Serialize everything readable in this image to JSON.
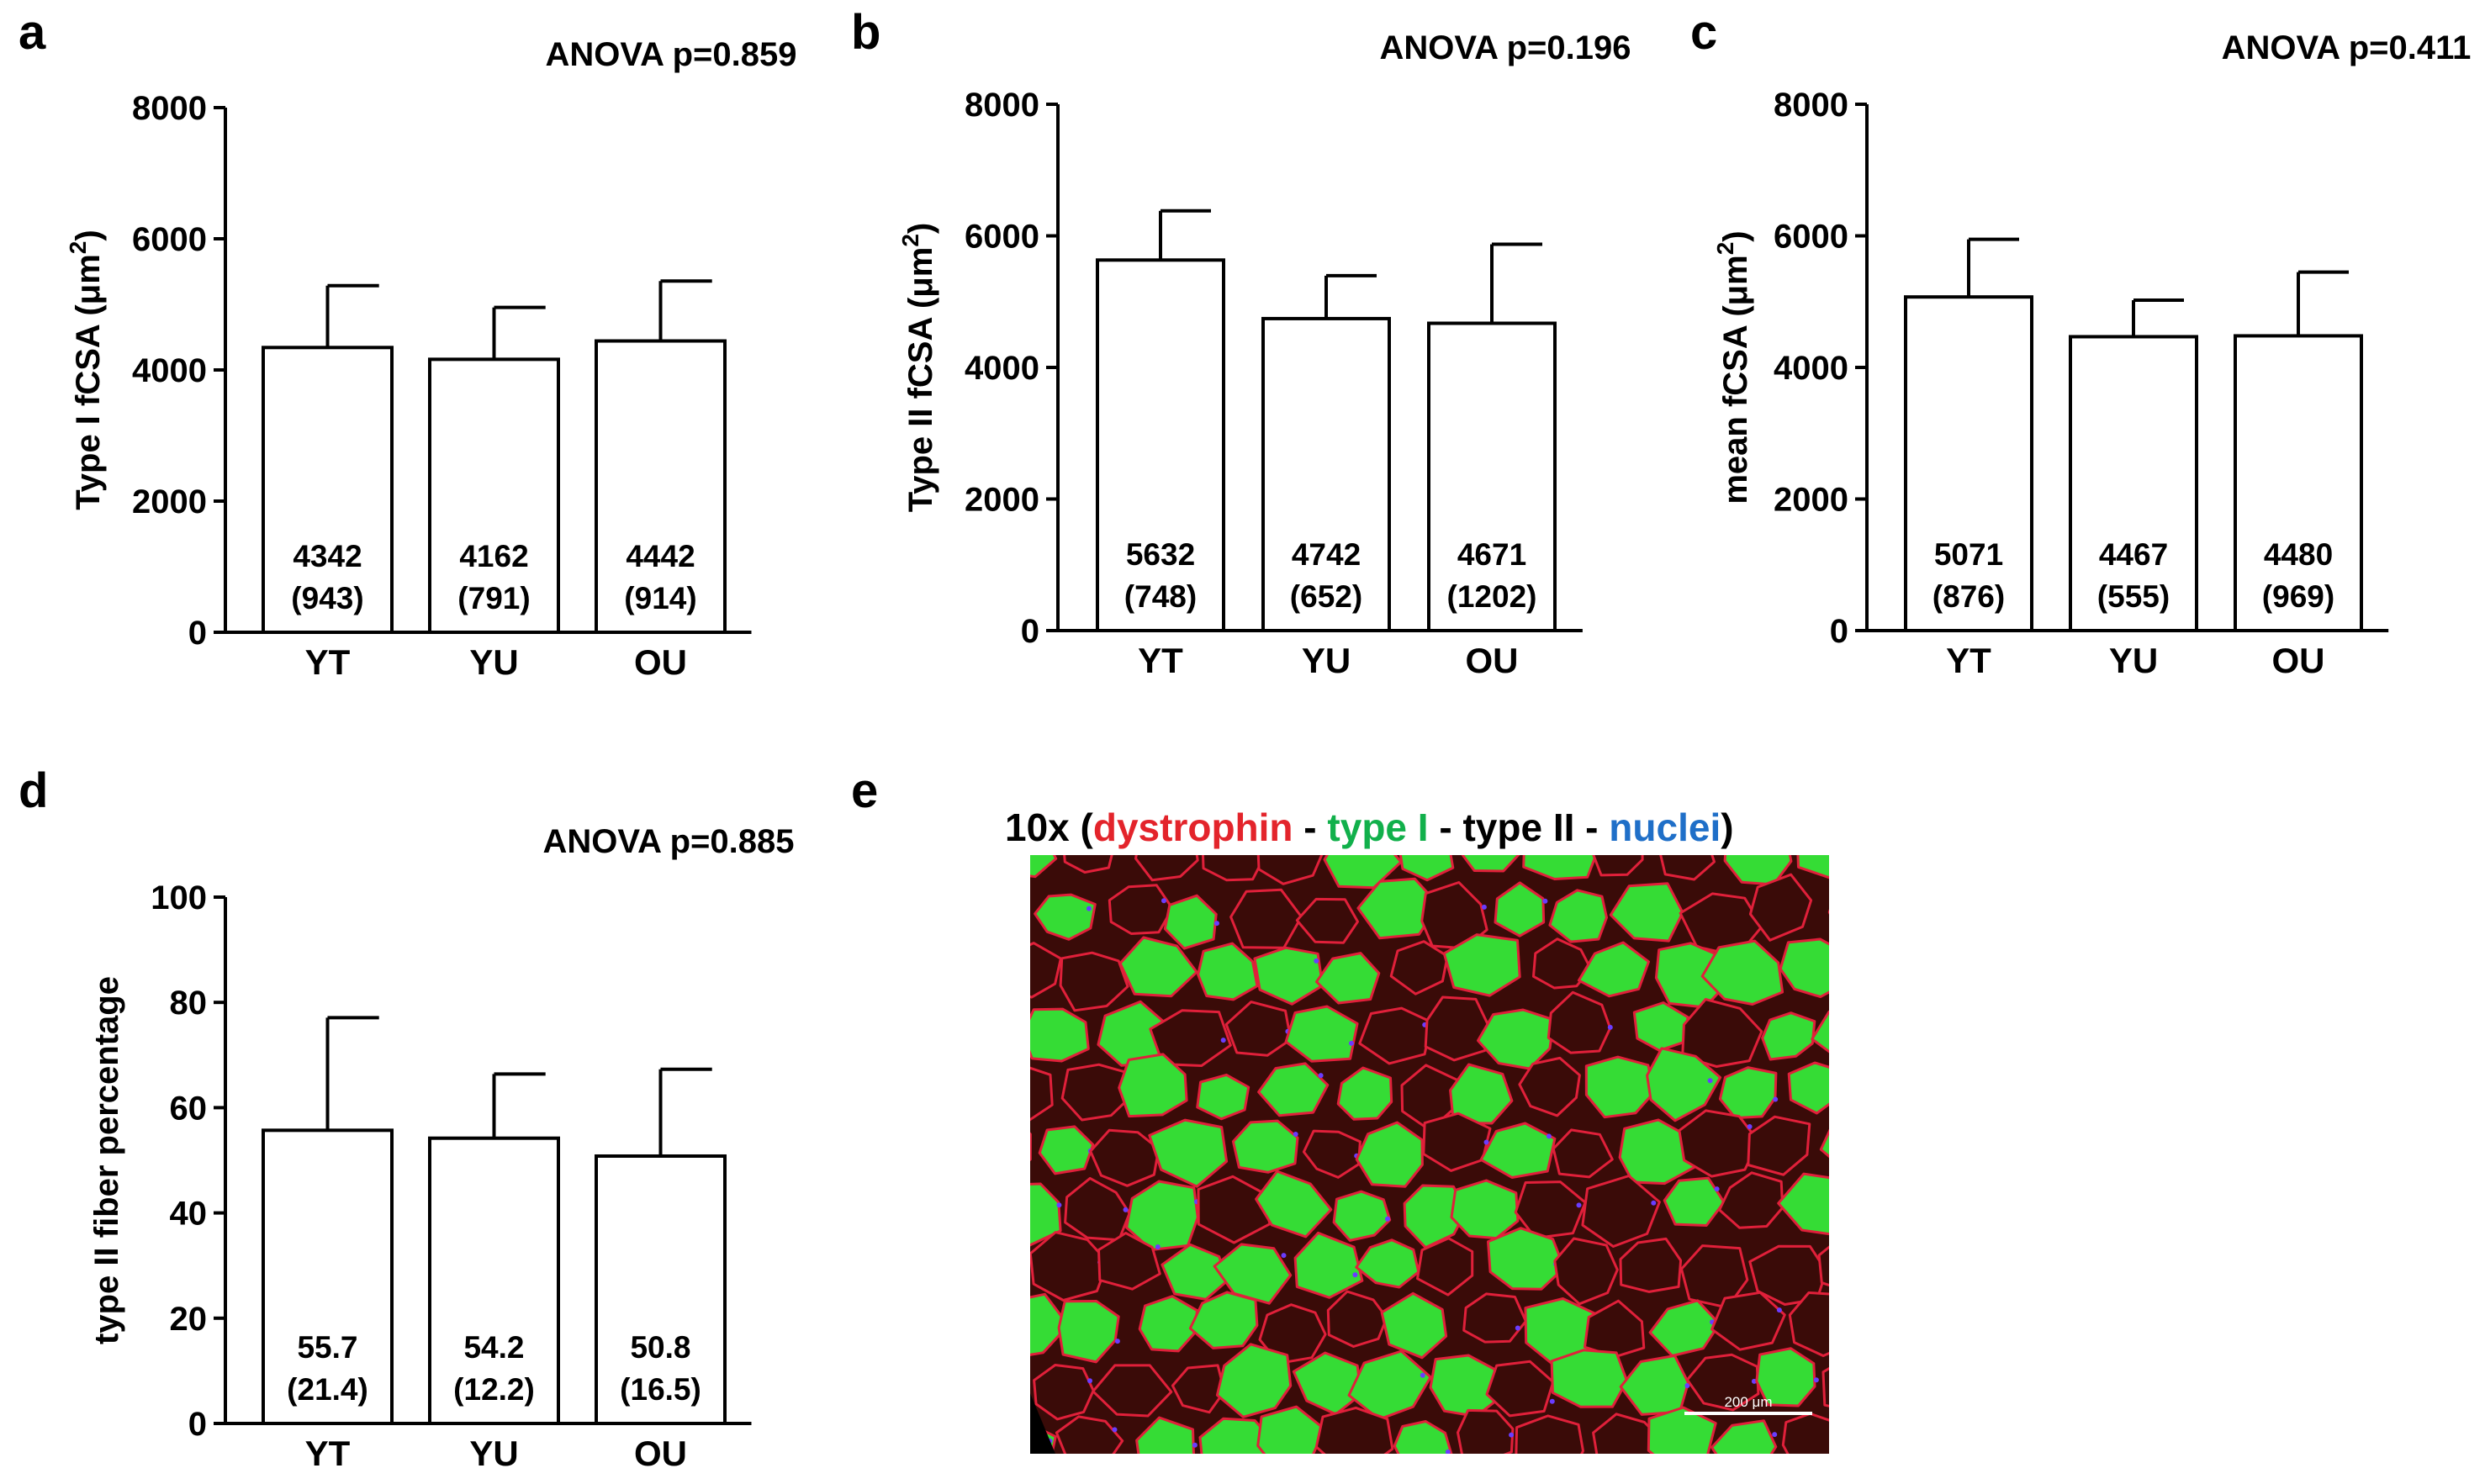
{
  "chart_data": [
    {
      "type": "bar",
      "panel": "a",
      "title": "ANOVA p=0.859",
      "ylabel": "Type I fCSA (μm",
      "ylabel_sup": "2",
      "ylabel_end": ")",
      "categories": [
        "YT",
        "YU",
        "OU"
      ],
      "values": [
        4342,
        4162,
        4442
      ],
      "errors": [
        943,
        791,
        914
      ],
      "value_labels": [
        "4342",
        "4162",
        "4442"
      ],
      "sd_labels": [
        "(943)",
        "(791)",
        "(914)"
      ],
      "ylim": [
        0,
        8000
      ],
      "yticks": [
        0,
        2000,
        4000,
        6000,
        8000
      ],
      "ytick_labels": [
        "0",
        "2000",
        "4000",
        "6000",
        "8000"
      ]
    },
    {
      "type": "bar",
      "panel": "b",
      "title": "ANOVA p=0.196",
      "ylabel": "Type II fCSA (μm",
      "ylabel_sup": "2",
      "ylabel_end": ")",
      "categories": [
        "YT",
        "YU",
        "OU"
      ],
      "values": [
        5632,
        4742,
        4671
      ],
      "errors": [
        748,
        652,
        1202
      ],
      "value_labels": [
        "5632",
        "4742",
        "4671"
      ],
      "sd_labels": [
        "(748)",
        "(652)",
        "(1202)"
      ],
      "ylim": [
        0,
        8000
      ],
      "yticks": [
        0,
        2000,
        4000,
        6000,
        8000
      ],
      "ytick_labels": [
        "0",
        "2000",
        "4000",
        "6000",
        "8000"
      ]
    },
    {
      "type": "bar",
      "panel": "c",
      "title": "ANOVA p=0.411",
      "ylabel": "mean fCSA (μm",
      "ylabel_sup": "2",
      "ylabel_end": ")",
      "categories": [
        "YT",
        "YU",
        "OU"
      ],
      "values": [
        5071,
        4467,
        4480
      ],
      "errors": [
        876,
        555,
        969
      ],
      "value_labels": [
        "5071",
        "4467",
        "4480"
      ],
      "sd_labels": [
        "(876)",
        "(555)",
        "(969)"
      ],
      "ylim": [
        0,
        8000
      ],
      "yticks": [
        0,
        2000,
        4000,
        6000,
        8000
      ],
      "ytick_labels": [
        "0",
        "2000",
        "4000",
        "6000",
        "8000"
      ]
    },
    {
      "type": "bar",
      "panel": "d",
      "title": "ANOVA p=0.885",
      "ylabel": "type II fiber percentage",
      "ylabel_sup": "",
      "ylabel_end": "",
      "categories": [
        "YT",
        "YU",
        "OU"
      ],
      "values": [
        55.7,
        54.2,
        50.8
      ],
      "errors": [
        21.4,
        12.2,
        16.5
      ],
      "value_labels": [
        "55.7",
        "54.2",
        "50.8"
      ],
      "sd_labels": [
        "(21.4)",
        "(12.2)",
        "(16.5)"
      ],
      "ylim": [
        0,
        100
      ],
      "yticks": [
        0,
        20,
        40,
        60,
        80,
        100
      ],
      "ytick_labels": [
        "0",
        "20",
        "40",
        "60",
        "80",
        "100"
      ]
    }
  ],
  "micrograph": {
    "panel": "e",
    "title_prefix": "10x (",
    "stain_dystrophin": "dystrophin",
    "sep1": " - ",
    "stain_type1": "type I",
    "sep2": " - ",
    "stain_type2": "type II",
    "sep3": " - ",
    "stain_nuclei": "nuclei",
    "title_suffix": ")",
    "scale_bar": "200 μm",
    "colors": {
      "dystrophin": "#e3242b",
      "type1": "#11b04b",
      "type2": "#000000",
      "nuclei": "#1f6fc8",
      "fiber_green": "#35dc35",
      "fiber_dark": "#3a0b08",
      "membrane": "#e0203a",
      "nucleus_dot": "#6a3cff"
    }
  }
}
